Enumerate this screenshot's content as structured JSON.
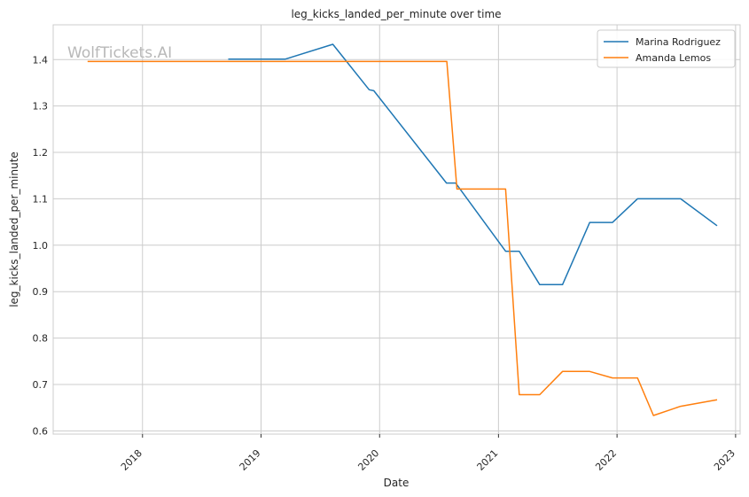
{
  "chart_data": {
    "type": "line",
    "title": "leg_kicks_landed_per_minute over time",
    "xlabel": "Date",
    "ylabel": "leg_kicks_landed_per_minute",
    "watermark": "WolfTickets.AI",
    "grid": true,
    "legend_position": "top-right",
    "xlim": [
      "2017-04-01",
      "2023-01-15"
    ],
    "ylim": [
      0.593,
      1.475
    ],
    "x_ticks": [
      {
        "date": "2018-01-01",
        "label": "2018"
      },
      {
        "date": "2019-01-01",
        "label": "2019"
      },
      {
        "date": "2020-01-01",
        "label": "2020"
      },
      {
        "date": "2021-01-01",
        "label": "2021"
      },
      {
        "date": "2022-01-01",
        "label": "2022"
      },
      {
        "date": "2023-01-01",
        "label": "2023"
      }
    ],
    "y_ticks": [
      {
        "value": 0.6,
        "label": "0.6"
      },
      {
        "value": 0.7,
        "label": "0.7"
      },
      {
        "value": 0.8,
        "label": "0.8"
      },
      {
        "value": 0.9,
        "label": "0.9"
      },
      {
        "value": 1.0,
        "label": "1.0"
      },
      {
        "value": 1.1,
        "label": "1.1"
      },
      {
        "value": 1.2,
        "label": "1.2"
      },
      {
        "value": 1.3,
        "label": "1.3"
      },
      {
        "value": 1.4,
        "label": "1.4"
      }
    ],
    "series": [
      {
        "name": "Marina Rodriguez",
        "color": "#1f77b4",
        "points": [
          {
            "x": "2018-09-22",
            "y": 1.401
          },
          {
            "x": "2019-03-16",
            "y": 1.401
          },
          {
            "x": "2019-08-10",
            "y": 1.433
          },
          {
            "x": "2019-11-30",
            "y": 1.335
          },
          {
            "x": "2019-12-14",
            "y": 1.333
          },
          {
            "x": "2020-07-25",
            "y": 1.134
          },
          {
            "x": "2020-08-22",
            "y": 1.134
          },
          {
            "x": "2021-01-23",
            "y": 0.987
          },
          {
            "x": "2021-03-06",
            "y": 0.987
          },
          {
            "x": "2021-05-08",
            "y": 0.915
          },
          {
            "x": "2021-07-17",
            "y": 0.915
          },
          {
            "x": "2021-10-09",
            "y": 1.049
          },
          {
            "x": "2021-12-18",
            "y": 1.049
          },
          {
            "x": "2022-03-05",
            "y": 1.1
          },
          {
            "x": "2022-07-16",
            "y": 1.1
          },
          {
            "x": "2022-11-05",
            "y": 1.042
          }
        ]
      },
      {
        "name": "Amanda Lemos",
        "color": "#ff7f0e",
        "points": [
          {
            "x": "2017-07-16",
            "y": 1.396
          },
          {
            "x": "2020-07-26",
            "y": 1.396
          },
          {
            "x": "2020-08-26",
            "y": 1.121
          },
          {
            "x": "2021-01-23",
            "y": 1.121
          },
          {
            "x": "2021-03-06",
            "y": 0.678
          },
          {
            "x": "2021-05-08",
            "y": 0.678
          },
          {
            "x": "2021-07-17",
            "y": 0.728
          },
          {
            "x": "2021-10-09",
            "y": 0.728
          },
          {
            "x": "2021-12-18",
            "y": 0.714
          },
          {
            "x": "2022-03-05",
            "y": 0.714
          },
          {
            "x": "2022-04-23",
            "y": 0.633
          },
          {
            "x": "2022-07-16",
            "y": 0.653
          },
          {
            "x": "2022-11-05",
            "y": 0.667
          }
        ]
      }
    ]
  }
}
